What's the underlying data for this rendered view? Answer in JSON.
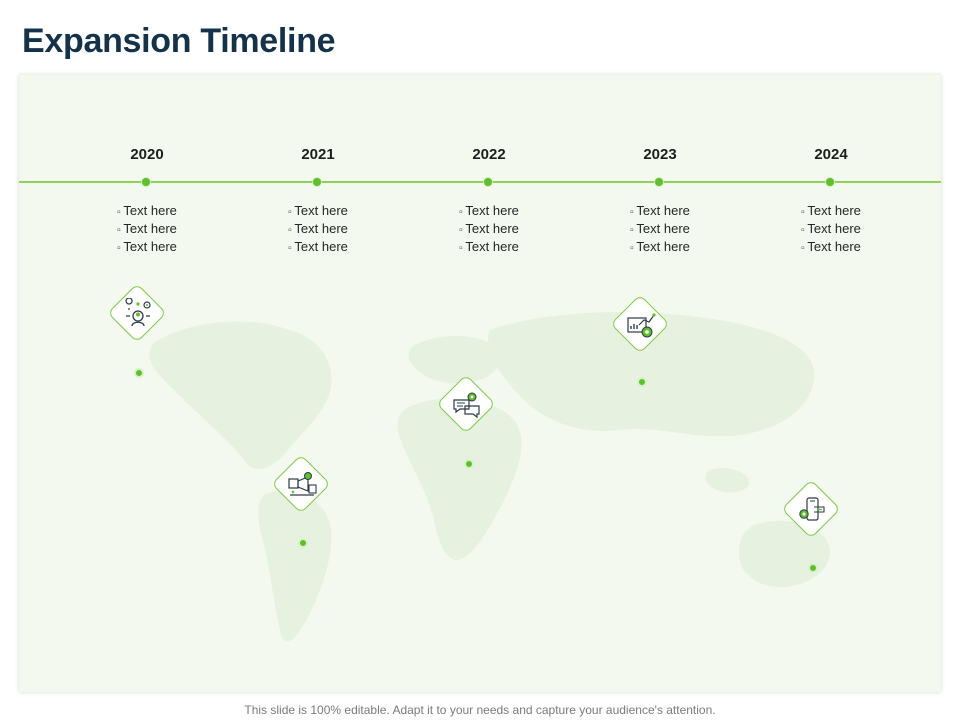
{
  "title": "Expansion Timeline",
  "footer": "This slide is 100% editable. Adapt it to your needs and capture your audience's attention.",
  "colors": {
    "accent": "#5fbf2c",
    "line": "#8fd25a",
    "title": "#14324a",
    "panel": "#f3f9ee"
  },
  "milestones": [
    {
      "year": "2020",
      "items": [
        "Text here",
        "Text here",
        "Text here"
      ],
      "icon": "idea-gear-person-icon"
    },
    {
      "year": "2021",
      "items": [
        "Text here",
        "Text here",
        "Text here"
      ],
      "icon": "megaphone-gear-icon"
    },
    {
      "year": "2022",
      "items": [
        "Text here",
        "Text here",
        "Text here"
      ],
      "icon": "chat-gear-icon"
    },
    {
      "year": "2023",
      "items": [
        "Text here",
        "Text here",
        "Text here"
      ],
      "icon": "chart-growth-icon"
    },
    {
      "year": "2024",
      "items": [
        "Text here",
        "Text here",
        "Text here"
      ],
      "icon": "mobile-gear-icon"
    }
  ]
}
